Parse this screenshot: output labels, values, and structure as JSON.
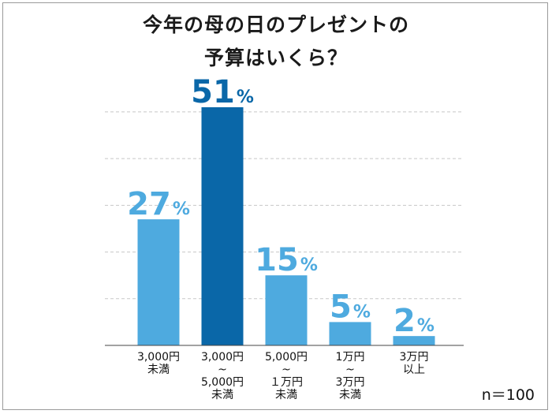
{
  "title_lines": [
    "今年の母の日のプレゼントの",
    "予算はいくら？"
  ],
  "note": "n＝100",
  "colors": {
    "bar": "#4eaadf",
    "highlight": "#0a67a8",
    "label": "#4eaadf",
    "highlight_label": "#0a67a8",
    "grid": "#c8c8c8",
    "axis": "#444444"
  },
  "chart_data": {
    "type": "bar",
    "title": "今年の母の日のプレゼントの予算はいくら？",
    "unit": "%",
    "categories": [
      [
        "3,000円",
        "未満"
      ],
      [
        "3,000円",
        "~",
        "5,000円",
        "未満"
      ],
      [
        "5,000円",
        "~",
        "１万円",
        "未満"
      ],
      [
        "1万円",
        "~",
        "3万円",
        "未満"
      ],
      [
        "3万円",
        "以上"
      ]
    ],
    "values": [
      27,
      51,
      15,
      5,
      2
    ],
    "highlight_index": 1,
    "ylim": [
      0,
      51
    ],
    "grid": true
  }
}
